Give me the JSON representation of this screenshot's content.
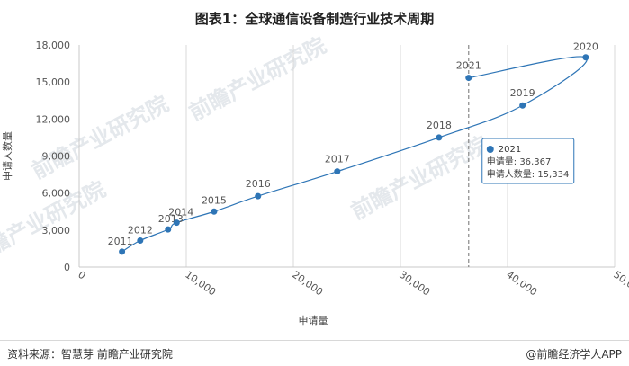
{
  "title": "图表1：全球通信设备制造行业技术周期",
  "footer": {
    "source": "资料来源：智慧芽 前瞻产业研究院",
    "brand": "@前瞻经济学人APP"
  },
  "chart_data": {
    "type": "line",
    "xlabel": "申请量",
    "ylabel": "申请人数量",
    "xlim": [
      0,
      50000
    ],
    "ylim": [
      0,
      18000
    ],
    "x_ticks": [
      0,
      10000,
      20000,
      30000,
      40000,
      50000
    ],
    "x_tick_labels": [
      "0",
      "10,000",
      "20,000",
      "30,000",
      "40,000",
      "50,000"
    ],
    "y_ticks": [
      0,
      3000,
      6000,
      9000,
      12000,
      15000,
      18000
    ],
    "y_tick_labels": [
      "0",
      "3,000",
      "6,000",
      "9,000",
      "12,000",
      "15,000",
      "18,000"
    ],
    "grid": "vertical",
    "series_color": "#2e75b6",
    "points": [
      {
        "label": "2011",
        "x": 4000,
        "y": 1250
      },
      {
        "label": "2012",
        "x": 5700,
        "y": 2150
      },
      {
        "label": "2013",
        "x": 8300,
        "y": 3050
      },
      {
        "label": "2014",
        "x": 9100,
        "y": 3600
      },
      {
        "label": "2015",
        "x": 12600,
        "y": 4500
      },
      {
        "label": "2016",
        "x": 16700,
        "y": 5750
      },
      {
        "label": "2017",
        "x": 24100,
        "y": 7750
      },
      {
        "label": "2018",
        "x": 33600,
        "y": 10500
      },
      {
        "label": "2019",
        "x": 41400,
        "y": 13100
      },
      {
        "label": "2020",
        "x": 47300,
        "y": 17000
      },
      {
        "label": "2021",
        "x": 36367,
        "y": 15334
      }
    ],
    "tooltip": {
      "label": "2021",
      "line1": "申请量: 36,367",
      "line2": "申请人数量: 15,334",
      "x": 36367
    },
    "watermark": "前瞻产业研究院"
  }
}
